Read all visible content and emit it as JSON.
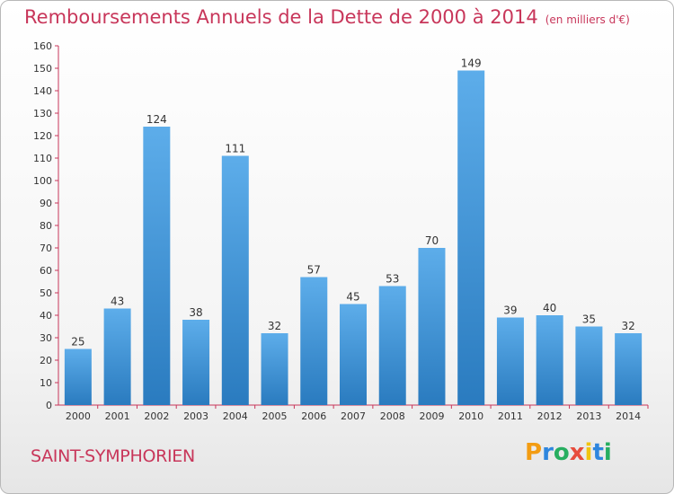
{
  "chart_data": {
    "type": "bar",
    "title": "Remboursements Annuels de la Dette de 2000 à 2014",
    "unit_label": "(en milliers d'€)",
    "categories": [
      "2000",
      "2001",
      "2002",
      "2003",
      "2004",
      "2005",
      "2006",
      "2007",
      "2008",
      "2009",
      "2010",
      "2011",
      "2012",
      "2013",
      "2014"
    ],
    "values": [
      25,
      43,
      124,
      38,
      111,
      32,
      57,
      45,
      53,
      70,
      149,
      39,
      40,
      35,
      32
    ],
    "yticks": [
      0,
      10,
      20,
      30,
      40,
      50,
      60,
      70,
      80,
      90,
      100,
      110,
      120,
      130,
      140,
      150,
      160
    ],
    "ylim": [
      0,
      160
    ],
    "xlabel": "",
    "ylabel": "",
    "grid": false,
    "legend": "none"
  },
  "location": "SAINT-SYMPHORIEN",
  "logo": {
    "text": "Proxiti",
    "letters": [
      "P",
      "r",
      "o",
      "x",
      "i",
      "t",
      "i"
    ],
    "colors": [
      "#f39c12",
      "#2e86de",
      "#27ae60",
      "#e74c3c",
      "#f1c40f",
      "#2e86de",
      "#27ae60"
    ]
  },
  "colors": {
    "bar_top": "#5dadea",
    "bar_bottom": "#2a7bbf",
    "title": "#c8365a",
    "axis": "#c8365a"
  }
}
